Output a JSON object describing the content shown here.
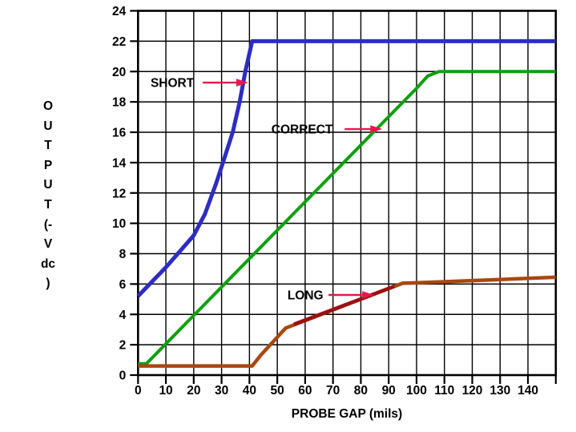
{
  "chart_data": {
    "type": "line",
    "title": "",
    "xlabel": "PROBE GAP (mils)",
    "ylabel": "OUTPUT (- V dc )",
    "ylabel_lines": [
      "O",
      "U",
      "T",
      "P",
      "U",
      "T",
      "(-",
      "V",
      "dc",
      ")"
    ],
    "xlim": [
      0,
      150
    ],
    "ylim": [
      0,
      24
    ],
    "x_tick_step": 10,
    "y_tick_step": 2,
    "x_tick_labels": [
      "0",
      "10",
      "20",
      "30",
      "40",
      "50",
      "60",
      "70",
      "80",
      "90",
      "100",
      "110",
      "120",
      "130",
      "140"
    ],
    "y_tick_labels": [
      "0",
      "2",
      "4",
      "6",
      "8",
      "10",
      "12",
      "14",
      "16",
      "18",
      "20",
      "22",
      "24"
    ],
    "grid": true,
    "grid_color": "#000000",
    "text_color": "#000000",
    "annotation_arrow_color": "#e8174b",
    "series": [
      {
        "name": "CORRECT",
        "color": "#0ba00b",
        "width": 4,
        "points": [
          [
            0,
            0.75
          ],
          [
            3,
            0.75
          ],
          [
            100,
            18.9
          ],
          [
            104,
            19.7
          ],
          [
            108,
            20
          ],
          [
            150,
            20
          ]
        ]
      },
      {
        "name": "LONG",
        "color": "#a8470f",
        "width": 4.5,
        "points": [
          [
            0,
            0.6
          ],
          [
            41,
            0.6
          ],
          [
            44,
            1.3
          ],
          [
            53,
            3.1
          ],
          [
            70,
            4.3
          ],
          [
            95,
            6.05
          ],
          [
            110,
            6.15
          ],
          [
            130,
            6.3
          ],
          [
            150,
            6.45
          ]
        ]
      },
      {
        "name": "LONG (dark red segment)",
        "color": "#9c0f12",
        "width": 4.5,
        "points": [
          [
            56,
            3.35
          ],
          [
            92,
            5.85
          ]
        ]
      },
      {
        "name": "SHORT",
        "color": "#2d2dc2",
        "width": 5,
        "points": [
          [
            0,
            5.2
          ],
          [
            10,
            7.1
          ],
          [
            20,
            9.2
          ],
          [
            24,
            10.6
          ],
          [
            28,
            12.6
          ],
          [
            30.5,
            14
          ],
          [
            34,
            16
          ],
          [
            36.5,
            18
          ],
          [
            38.5,
            20
          ],
          [
            41,
            22
          ],
          [
            150,
            22
          ]
        ]
      }
    ],
    "annotations": [
      {
        "label": "SHORT",
        "label_x": 12.3,
        "label_y": 19.27,
        "arrow_from_x": 23.2,
        "arrow_to_x": 39.6,
        "arrow_y": 19.27
      },
      {
        "label": "CORRECT",
        "label_x": 58.9,
        "label_y": 16.21,
        "arrow_from_x": 74.2,
        "arrow_to_x": 87.7,
        "arrow_y": 16.21
      },
      {
        "label": "LONG",
        "label_x": 60.1,
        "label_y": 5.28,
        "arrow_from_x": 68.4,
        "arrow_to_x": 84.8,
        "arrow_y": 5.28
      }
    ]
  }
}
